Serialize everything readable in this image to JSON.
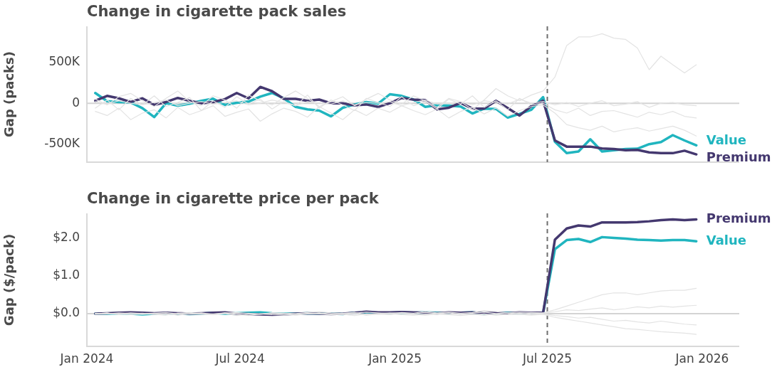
{
  "chart_data": [
    {
      "type": "line",
      "title": "Change in cigarette pack sales",
      "ylabel": "Gap (packs)",
      "x": [
        "2024-01-11",
        "2024-01-25",
        "2024-02-08",
        "2024-02-22",
        "2024-03-07",
        "2024-03-21",
        "2024-04-04",
        "2024-04-18",
        "2024-05-02",
        "2024-05-16",
        "2024-05-30",
        "2024-06-13",
        "2024-06-27",
        "2024-07-11",
        "2024-07-25",
        "2024-08-08",
        "2024-08-22",
        "2024-09-05",
        "2024-09-19",
        "2024-10-03",
        "2024-10-17",
        "2024-10-31",
        "2024-11-14",
        "2024-11-28",
        "2024-12-12",
        "2024-12-26",
        "2025-01-09",
        "2025-01-23",
        "2025-02-06",
        "2025-02-20",
        "2025-03-06",
        "2025-03-20",
        "2025-04-03",
        "2025-04-17",
        "2025-05-01",
        "2025-05-15",
        "2025-05-29",
        "2025-06-12",
        "2025-06-26",
        "2025-07-10",
        "2025-07-24",
        "2025-08-07",
        "2025-08-21",
        "2025-09-04",
        "2025-09-18",
        "2025-10-02",
        "2025-10-16",
        "2025-10-30",
        "2025-11-13",
        "2025-11-27",
        "2025-12-11",
        "2025-12-25"
      ],
      "series": [
        {
          "color": "#e3e3e3",
          "values": [
            50000,
            -20000,
            80000,
            120000,
            30000,
            -40000,
            60000,
            150000,
            20000,
            -30000,
            90000,
            40000,
            -60000,
            100000,
            30000,
            -20000,
            70000,
            150000,
            60000,
            -40000,
            20000,
            80000,
            -30000,
            50000,
            120000,
            40000,
            -10000,
            90000,
            30000,
            -50000,
            60000,
            20000,
            -80000,
            40000,
            180000,
            90000,
            30000,
            100000,
            150000,
            320000,
            705000,
            810000,
            810000,
            850000,
            795000,
            780000,
            675000,
            410000,
            575000,
            470000,
            370000,
            470000
          ]
        },
        {
          "color": "#e3e3e3",
          "values": [
            -100000,
            -150000,
            -60000,
            -200000,
            -120000,
            -80000,
            -180000,
            -50000,
            -140000,
            -90000,
            -30000,
            -160000,
            -110000,
            -70000,
            -220000,
            -130000,
            -60000,
            -100000,
            -170000,
            -40000,
            -120000,
            -200000,
            -80000,
            -150000,
            -60000,
            -110000,
            -30000,
            -90000,
            -140000,
            -70000,
            -180000,
            -100000,
            -50000,
            -130000,
            -60000,
            -160000,
            -90000,
            -40000,
            -20000,
            -120000,
            -260000,
            -300000,
            -330000,
            -280000,
            -350000,
            -320000,
            -300000,
            -340000,
            -310000,
            -280000,
            -330000,
            -400000
          ]
        },
        {
          "color": "#e3e3e3",
          "values": [
            20000,
            -10000,
            30000,
            0,
            -20000,
            10000,
            40000,
            -30000,
            0,
            20000,
            -10000,
            10000,
            30000,
            -20000,
            0,
            40000,
            10000,
            -30000,
            20000,
            0,
            -10000,
            30000,
            -20000,
            10000,
            0,
            20000,
            -30000,
            10000,
            40000,
            -10000,
            0,
            20000,
            -20000,
            30000,
            10000,
            -10000,
            50000,
            0,
            20000,
            -20000,
            10000,
            -40000,
            0,
            30000,
            -30000,
            -10000,
            20000,
            -50000,
            0,
            10000,
            -20000,
            -30000
          ]
        },
        {
          "color": "#e3e3e3",
          "values": [
            -60000,
            40000,
            -80000,
            60000,
            -20000,
            90000,
            -40000,
            10000,
            70000,
            -90000,
            30000,
            -50000,
            80000,
            -10000,
            50000,
            -70000,
            20000,
            -30000,
            100000,
            -60000,
            40000,
            -20000,
            -90000,
            60000,
            10000,
            -40000,
            80000,
            -30000,
            20000,
            -70000,
            50000,
            -10000,
            90000,
            -50000,
            30000,
            -80000,
            60000,
            -20000,
            0,
            -80000,
            -120000,
            -60000,
            -150000,
            -100000,
            -90000,
            -130000,
            -170000,
            -110000,
            -140000,
            -100000,
            -160000,
            -180000
          ]
        },
        {
          "name": "Premium",
          "color": "#44386f",
          "values": [
            30000,
            90000,
            60000,
            15000,
            60000,
            -20000,
            15000,
            65000,
            30000,
            0,
            15000,
            50000,
            125000,
            60000,
            200000,
            147000,
            53000,
            53000,
            30000,
            45000,
            0,
            0,
            -25000,
            -15000,
            -45000,
            0,
            65000,
            45000,
            38000,
            -75000,
            -55000,
            5000,
            -65000,
            -65000,
            30000,
            -60000,
            -150000,
            -35000,
            30000,
            -455000,
            -530000,
            -530000,
            -530000,
            -553000,
            -560000,
            -575000,
            -570000,
            -600000,
            -610000,
            -610000,
            -580000,
            -625000
          ]
        },
        {
          "name": "Value",
          "color": "#20b5bf",
          "values": [
            125000,
            25000,
            15000,
            10000,
            -60000,
            -170000,
            0,
            -30000,
            -5000,
            30000,
            55000,
            -20000,
            5000,
            20000,
            80000,
            125000,
            60000,
            -45000,
            -75000,
            -90000,
            -160000,
            -55000,
            -15000,
            15000,
            -5000,
            110000,
            90000,
            45000,
            -45000,
            -25000,
            -30000,
            -40000,
            -125000,
            -65000,
            -70000,
            -175000,
            -130000,
            -80000,
            75000,
            -470000,
            -610000,
            -590000,
            -440000,
            -590000,
            -575000,
            -560000,
            -555000,
            -500000,
            -475000,
            -390000,
            -455000,
            -515000
          ]
        }
      ],
      "xlim": [
        "2024-01-01",
        "2026-02-14"
      ],
      "ylim": [
        -720000,
        940000
      ],
      "yticks": [
        {
          "value": -500000,
          "label": "-500K"
        },
        0,
        {
          "value": 500000,
          "label": "500K"
        }
      ],
      "tick_labels": "y",
      "ref_lines": [
        {
          "axis": "y",
          "value": 0,
          "color": "#d4d4d4",
          "line_style": "solid"
        },
        {
          "axis": "x",
          "value": "2025-07-01",
          "color": "#6e6e6e",
          "line_style": "dashed"
        }
      ]
    },
    {
      "type": "line",
      "title": "Change in cigarette price per pack",
      "ylabel": "Gap ($/pack)",
      "x": [
        "2024-01-11",
        "2024-01-25",
        "2024-02-08",
        "2024-02-22",
        "2024-03-07",
        "2024-03-21",
        "2024-04-04",
        "2024-04-18",
        "2024-05-02",
        "2024-05-16",
        "2024-05-30",
        "2024-06-13",
        "2024-06-27",
        "2024-07-11",
        "2024-07-25",
        "2024-08-08",
        "2024-08-22",
        "2024-09-05",
        "2024-09-19",
        "2024-10-03",
        "2024-10-17",
        "2024-10-31",
        "2024-11-14",
        "2024-11-28",
        "2024-12-12",
        "2024-12-26",
        "2025-01-09",
        "2025-01-23",
        "2025-02-06",
        "2025-02-20",
        "2025-03-06",
        "2025-03-20",
        "2025-04-03",
        "2025-04-17",
        "2025-05-01",
        "2025-05-15",
        "2025-05-29",
        "2025-06-12",
        "2025-06-26",
        "2025-07-10",
        "2025-07-24",
        "2025-08-07",
        "2025-08-21",
        "2025-09-04",
        "2025-09-18",
        "2025-10-02",
        "2025-10-16",
        "2025-10-30",
        "2025-11-13",
        "2025-11-27",
        "2025-12-11",
        "2025-12-25"
      ],
      "series": [
        {
          "color": "#e3e3e3",
          "values": [
            0,
            0.01,
            -0.01,
            0.02,
            0,
            0.01,
            -0.02,
            0.01,
            0.03,
            0,
            -0.01,
            0.02,
            0,
            0.01,
            -0.02,
            0.02,
            0.01,
            0,
            0.03,
            0.05,
            0.02,
            0,
            0.01,
            0.04,
            0.02,
            0,
            0.03,
            0.01,
            0.06,
            0.02,
            0.04,
            0.01,
            0.03,
            0.08,
            0.05,
            0.02,
            0.04,
            0.03,
            0.02,
            0.1,
            0.2,
            0.3,
            0.4,
            0.5,
            0.55,
            0.55,
            0.5,
            0.55,
            0.6,
            0.62,
            0.62,
            0.67
          ]
        },
        {
          "color": "#e3e3e3",
          "values": [
            -0.02,
            -0.01,
            0,
            -0.03,
            -0.01,
            -0.02,
            0,
            -0.04,
            -0.01,
            -0.02,
            -0.03,
            0,
            -0.05,
            -0.02,
            -0.01,
            -0.03,
            -0.04,
            -0.02,
            0,
            -0.01,
            -0.03,
            -0.02,
            -0.05,
            -0.01,
            -0.02,
            0,
            -0.03,
            -0.04,
            -0.02,
            -0.01,
            -0.03,
            -0.05,
            -0.02,
            -0.04,
            -0.01,
            -0.03,
            -0.02,
            -0.04,
            -0.02,
            -0.1,
            -0.15,
            -0.2,
            -0.25,
            -0.3,
            -0.35,
            -0.4,
            -0.42,
            -0.45,
            -0.48,
            -0.5,
            -0.52,
            -0.55
          ]
        },
        {
          "color": "#e3e3e3",
          "values": [
            0.01,
            -0.01,
            0.02,
            0,
            -0.02,
            0.01,
            0.03,
            -0.01,
            0,
            0.02,
            -0.02,
            0.01,
            0.03,
            0,
            -0.01,
            0.02,
            0.01,
            -0.03,
            0,
            0.02,
            -0.01,
            0.01,
            0.03,
            -0.02,
            0,
            0.02,
            0.01,
            -0.01,
            0.03,
            0,
            0.02,
            -0.02,
            0.01,
            0.04,
            0,
            0.02,
            -0.01,
            0.01,
            0.01,
            0.05,
            0.1,
            0.08,
            0.12,
            0.15,
            0.1,
            0.13,
            0.18,
            0.15,
            0.2,
            0.17,
            0.2,
            0.22
          ]
        },
        {
          "color": "#e3e3e3",
          "values": [
            -0.01,
            0.02,
            -0.03,
            0,
            0.01,
            -0.02,
            -0.04,
            0.01,
            -0.01,
            0,
            -0.03,
            0.02,
            -0.02,
            -0.05,
            -0.01,
            0,
            -0.02,
            -0.04,
            -0.01,
            0.01,
            -0.03,
            -0.02,
            0,
            -0.04,
            -0.01,
            -0.03,
            0.01,
            -0.02,
            -0.04,
            -0.01,
            -0.02,
            0,
            -0.03,
            -0.01,
            -0.04,
            -0.02,
            0.01,
            -0.02,
            -0.01,
            -0.05,
            -0.08,
            -0.12,
            -0.1,
            -0.15,
            -0.2,
            -0.18,
            -0.22,
            -0.25,
            -0.2,
            -0.24,
            -0.28,
            -0.3
          ]
        },
        {
          "name": "Premium",
          "color": "#44386f",
          "values": [
            0,
            0.01,
            0.02,
            0.03,
            0.02,
            0.01,
            0.02,
            0.01,
            0,
            0.01,
            0.02,
            0.03,
            0,
            -0.01,
            -0.02,
            -0.03,
            -0.02,
            0,
            0.01,
            0,
            -0.01,
            0,
            0.02,
            0.05,
            0.03,
            0.03,
            0.04,
            0.03,
            0.02,
            0.01,
            0.03,
            0.02,
            0.03,
            0.01,
            0.02,
            0.01,
            0.03,
            0.02,
            0.02,
            1.96,
            2.26,
            2.34,
            2.31,
            2.42,
            2.42,
            2.42,
            2.43,
            2.45,
            2.48,
            2.5,
            2.48,
            2.5
          ]
        },
        {
          "name": "Value",
          "color": "#20b5bf",
          "values": [
            0,
            0,
            0.01,
            0,
            -0.02,
            0,
            0.01,
            0,
            -0.01,
            0,
            0.02,
            0,
            0.01,
            0.02,
            0.03,
            0.01,
            0,
            0,
            0.01,
            0,
            0,
            -0.01,
            0.02,
            0.03,
            0.02,
            0.02,
            0.03,
            0.02,
            0.03,
            0.02,
            0.01,
            0.02,
            0.03,
            0,
            0.01,
            0.02,
            0.01,
            0.02,
            0.02,
            1.71,
            1.95,
            1.98,
            1.9,
            2.03,
            2.01,
            1.99,
            1.96,
            1.95,
            1.94,
            1.95,
            1.95,
            1.92
          ]
        }
      ],
      "xlim": [
        "2024-01-01",
        "2026-02-14"
      ],
      "xticks": [
        {
          "value": "2024-01-01",
          "label": "Jan 2024"
        },
        {
          "value": "2024-07-01",
          "label": "Jul 2024"
        },
        {
          "value": "2025-01-01",
          "label": "Jan 2025"
        },
        {
          "value": "2025-07-01",
          "label": "Jul 2025"
        },
        {
          "value": "2026-01-01",
          "label": "Jan 2026"
        }
      ],
      "ylim": [
        -0.87,
        2.66
      ],
      "yticks": [
        {
          "value": 0,
          "label": "$0.0"
        },
        {
          "value": 1,
          "label": "$1.0"
        },
        {
          "value": 2,
          "label": "$2.0"
        }
      ],
      "ref_lines": [
        {
          "axis": "y",
          "value": 0,
          "color": "#d4d4d4",
          "line_style": "solid"
        },
        {
          "axis": "x",
          "value": "2025-07-01",
          "color": "#6e6e6e",
          "line_style": "dashed"
        }
      ]
    }
  ]
}
